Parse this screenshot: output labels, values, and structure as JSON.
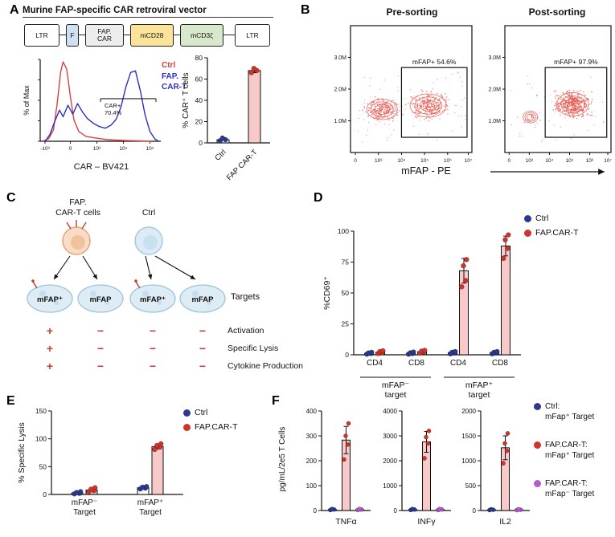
{
  "colors": {
    "ctrl_blue": "#2b3a8f",
    "car_red": "#cf342b",
    "bar_pink": "#f7c9c9",
    "purple_dot": "#b45bc7",
    "flow_red": "#e4544c",
    "symbol_red": "#d03a30",
    "axis": "#111111"
  },
  "series_styles": {
    "ctrl": {
      "dot": "#2b3a8f",
      "fill": "#ffffff"
    },
    "car": {
      "dot": "#cf342b",
      "fill": "#f7c9c9"
    },
    "carNeg": {
      "dot": "#b45bc7",
      "fill": "#ffffff"
    }
  },
  "panels": {
    "A": {
      "label": "A",
      "title": "Murine FAP-specific CAR retroviral vector",
      "vector_boxes": [
        {
          "lines": [
            "LTR"
          ],
          "fill": "#ffffff"
        },
        {
          "lines": [
            "F"
          ],
          "fill": "#cfe0f2"
        },
        {
          "lines": [
            "FAP.",
            "CAR"
          ],
          "fill": "#ededed"
        },
        {
          "lines": [
            "mCD28"
          ],
          "fill": "#fbe39a"
        },
        {
          "lines": [
            "mCD3ζ"
          ],
          "fill": "#d8e8cb"
        },
        {
          "lines": [
            "LTR"
          ],
          "fill": "#ffffff"
        }
      ],
      "hist_legend": [
        {
          "label": "Ctrl",
          "color": "#d9413d"
        },
        {
          "label": "FAP.",
          "color": "#2f2fc1"
        },
        {
          "label": "CAR-T",
          "color": "#2f2fc1"
        }
      ]
    },
    "B": {
      "label": "B",
      "xlabel": "mFAP - PE"
    },
    "C": {
      "label": "C",
      "cart_label_lines": [
        "FAP.",
        "CAR-T cells"
      ],
      "ctrl_label": "Ctrl",
      "targets": [
        "mFAP⁺",
        "mFAP",
        "mFAP⁺",
        "mFAP"
      ],
      "targets_caption": "Targets",
      "rows": [
        {
          "symbols": [
            "+",
            "−",
            "−",
            "−"
          ],
          "label": "Activation"
        },
        {
          "symbols": [
            "+",
            "−",
            "−",
            "−"
          ],
          "label": "Specific Lysis"
        },
        {
          "symbols": [
            "+",
            "−",
            "−",
            "−"
          ],
          "label": "Cytokine Production"
        }
      ]
    },
    "D": {
      "label": "D",
      "legend": [
        {
          "label": "Ctrl",
          "color": "#2b3a8f"
        },
        {
          "label": "FAP.CAR-T",
          "color": "#cf342b"
        }
      ]
    },
    "E": {
      "label": "E",
      "legend": [
        {
          "label": "Ctrl",
          "color": "#2b3a8f"
        },
        {
          "label": "FAP.CAR-T",
          "color": "#cf342b"
        }
      ]
    },
    "F": {
      "label": "F",
      "legend": [
        {
          "lines": [
            "Ctrl:",
            "mFap⁺ Target"
          ],
          "color": "#2b3a8f"
        },
        {
          "lines": [
            "FAP.CAR-T:",
            "mFap⁺ Target"
          ],
          "color": "#cf342b"
        },
        {
          "lines": [
            "FAP.CAR-T:",
            "mFap⁻ Target"
          ],
          "color": "#b45bc7"
        }
      ]
    }
  },
  "chart_data": [
    {
      "id": "car-histogram",
      "type": "line",
      "ylabel": "% of Max",
      "xlabel": "CAR – BV421",
      "xticks": [
        "-10³",
        "0",
        "10³",
        "10⁴",
        "10⁵"
      ],
      "gate": {
        "x1": 50,
        "x2": 96,
        "y": 52
      },
      "gate_label_lines": [
        "CAR+",
        "70.4%"
      ],
      "series": [
        {
          "name": "Ctrl",
          "color": "#d9413d",
          "points": [
            [
              2,
              0
            ],
            [
              7,
              3
            ],
            [
              11,
              14
            ],
            [
              14,
              45
            ],
            [
              17,
              85
            ],
            [
              19,
              97
            ],
            [
              22,
              88
            ],
            [
              25,
              55
            ],
            [
              28,
              26
            ],
            [
              32,
              12
            ],
            [
              38,
              6
            ],
            [
              46,
              4
            ],
            [
              56,
              2
            ],
            [
              70,
              1
            ],
            [
              92,
              0
            ]
          ]
        },
        {
          "name": "FAP.CAR-T",
          "color": "#2f2fc1",
          "points": [
            [
              4,
              0
            ],
            [
              8,
              8
            ],
            [
              12,
              24
            ],
            [
              16,
              38
            ],
            [
              19,
              30
            ],
            [
              23,
              44
            ],
            [
              27,
              33
            ],
            [
              31,
              46
            ],
            [
              35,
              36
            ],
            [
              39,
              28
            ],
            [
              44,
              22
            ],
            [
              49,
              18
            ],
            [
              54,
              16
            ],
            [
              59,
              20
            ],
            [
              63,
              27
            ],
            [
              67,
              42
            ],
            [
              71,
              66
            ],
            [
              75,
              84
            ],
            [
              79,
              86
            ],
            [
              83,
              62
            ],
            [
              87,
              32
            ],
            [
              91,
              12
            ],
            [
              95,
              3
            ],
            [
              98,
              0
            ]
          ]
        }
      ]
    },
    {
      "id": "car-bar",
      "type": "bar",
      "ylabel": "% CAR⁺ T cells",
      "ylim": [
        0,
        80
      ],
      "yticks": [
        0,
        20,
        40,
        60,
        80
      ],
      "groups": [
        {
          "label_lines": [
            "Ctrl"
          ],
          "bars": [
            {
              "series": "ctrl",
              "value": 3,
              "points": [
                2,
                3,
                4.5
              ]
            }
          ]
        },
        {
          "label_lines": [
            "FAP CAR-T"
          ],
          "bars": [
            {
              "series": "car",
              "value": 68,
              "error": 2,
              "points": [
                66,
                68,
                70
              ]
            }
          ]
        }
      ]
    },
    {
      "id": "flow-pre",
      "type": "scatter",
      "title": "Pre-sorting",
      "yticks": [
        "3.0M",
        "2.0M",
        "1.0M"
      ],
      "xticks": [
        "0",
        "10³",
        "10⁴",
        "10⁵",
        "10⁶",
        "10⁷"
      ],
      "gate": {
        "x1": 42,
        "y1": 33,
        "x2": 96,
        "y2": 88
      },
      "gate_label": "mFAP+ 54.6%",
      "clusters": [
        {
          "cx": 26,
          "cy": 66,
          "rx": 11,
          "ry": 7,
          "n": 210
        },
        {
          "cx": 64,
          "cy": 63,
          "rx": 13,
          "ry": 8,
          "n": 250
        }
      ],
      "noise": 80
    },
    {
      "id": "flow-post",
      "type": "scatter",
      "title": "Post-sorting",
      "yticks": [
        "3.0M",
        "2.0M",
        "1.0M"
      ],
      "xticks": [
        "0",
        "10³",
        "10⁴",
        "10⁵",
        "10⁶",
        "10⁷"
      ],
      "gate": {
        "x1": 38,
        "y1": 33,
        "x2": 96,
        "y2": 88
      },
      "gate_label": "mFAP+ 97.9%",
      "clusters": [
        {
          "cx": 64,
          "cy": 62,
          "rx": 13,
          "ry": 8,
          "n": 420
        },
        {
          "cx": 24,
          "cy": 72,
          "rx": 6,
          "ry": 4,
          "n": 15
        }
      ],
      "noise": 45
    },
    {
      "id": "cd69",
      "type": "bar",
      "ylabel": "%CD69⁺",
      "ylim": [
        0,
        100
      ],
      "yticks": [
        0,
        25,
        50,
        75,
        100
      ],
      "groups": [
        {
          "label_lines": [
            "CD4"
          ],
          "bars": [
            {
              "series": "ctrl",
              "value": 1,
              "points": [
                0.5,
                1,
                1.5,
                2
              ]
            },
            {
              "series": "car",
              "value": 2,
              "points": [
                1,
                1.8,
                2.6,
                3.2
              ]
            }
          ]
        },
        {
          "label_lines": [
            "CD8"
          ],
          "bars": [
            {
              "series": "ctrl",
              "value": 1,
              "points": [
                0.5,
                1,
                1.6,
                2.2
              ]
            },
            {
              "series": "car",
              "value": 2.5,
              "points": [
                1.4,
                2.2,
                3,
                3.6
              ]
            }
          ]
        },
        {
          "label_lines": [
            "CD4"
          ],
          "bars": [
            {
              "series": "ctrl",
              "value": 1.5,
              "points": [
                0.8,
                1.4,
                2,
                2.6
              ]
            },
            {
              "series": "car",
              "value": 68,
              "error": 10,
              "points": [
                55,
                60,
                72,
                77
              ]
            }
          ]
        },
        {
          "label_lines": [
            "CD8"
          ],
          "bars": [
            {
              "series": "ctrl",
              "value": 1.5,
              "points": [
                0.8,
                1.4,
                2,
                2.6
              ]
            },
            {
              "series": "car",
              "value": 88,
              "error": 8,
              "points": [
                78,
                86,
                93,
                97
              ]
            }
          ]
        }
      ],
      "axis_groups": [
        {
          "label_lines": [
            "mFAP⁻",
            "target"
          ],
          "from": 0,
          "to": 1
        },
        {
          "label_lines": [
            "mFAP⁺",
            "target"
          ],
          "from": 2,
          "to": 3
        }
      ]
    },
    {
      "id": "lysis",
      "type": "bar",
      "ylabel": "% Specific Lysis",
      "ylim": [
        0,
        150
      ],
      "yticks": [
        0,
        50,
        100,
        150
      ],
      "groups": [
        {
          "label_lines": [
            "mFAP⁻",
            "Target"
          ],
          "bars": [
            {
              "series": "ctrl",
              "value": 2.5,
              "points": [
                1,
                2,
                3.5,
                5
              ]
            },
            {
              "series": "car",
              "value": 8,
              "points": [
                5,
                7,
                9.5,
                12
              ]
            }
          ]
        },
        {
          "label_lines": [
            "mFAP⁺",
            "Target"
          ],
          "bars": [
            {
              "series": "ctrl",
              "value": 12,
              "points": [
                10,
                11.5,
                13,
                14
              ]
            },
            {
              "series": "car",
              "value": 86,
              "error": 4,
              "points": [
                81,
                85,
                88,
                91
              ]
            }
          ]
        }
      ]
    },
    {
      "id": "tnfa",
      "type": "bar",
      "xlabel": "TNFα",
      "ylabel": "pg/mL/2e5 T Cells",
      "ylim": [
        0,
        400
      ],
      "yticks": [
        0,
        100,
        200,
        300,
        400
      ],
      "groups": [
        {
          "label_lines": [],
          "bars": [
            {
              "series": "ctrl",
              "value": 4,
              "points": [
                2,
                4,
                6
              ]
            },
            {
              "series": "car",
              "value": 283,
              "error": 55,
              "points": [
                205,
                265,
                300,
                350
              ]
            },
            {
              "series": "carNeg",
              "value": 4,
              "points": [
                2,
                4,
                6
              ]
            }
          ]
        }
      ]
    },
    {
      "id": "infg",
      "type": "bar",
      "xlabel": "INFγ",
      "ylim": [
        0,
        4000
      ],
      "yticks": [
        0,
        1000,
        2000,
        3000,
        4000
      ],
      "groups": [
        {
          "label_lines": [],
          "bars": [
            {
              "series": "ctrl",
              "value": 40,
              "points": [
                20,
                40,
                60
              ]
            },
            {
              "series": "car",
              "value": 2760,
              "error": 420,
              "points": [
                2100,
                2700,
                2950,
                3200
              ]
            },
            {
              "series": "carNeg",
              "value": 40,
              "points": [
                20,
                40,
                60
              ]
            }
          ]
        }
      ]
    },
    {
      "id": "il2",
      "type": "bar",
      "xlabel": "IL2",
      "ylim": [
        0,
        2000
      ],
      "yticks": [
        0,
        500,
        1000,
        1500,
        2000
      ],
      "groups": [
        {
          "label_lines": [],
          "bars": [
            {
              "series": "ctrl",
              "value": 15,
              "points": [
                8,
                15,
                25
              ]
            },
            {
              "series": "car",
              "value": 1260,
              "error": 240,
              "points": [
                950,
                1200,
                1350,
                1550
              ]
            },
            {
              "series": "carNeg",
              "value": 15,
              "points": [
                8,
                15,
                25
              ]
            }
          ]
        }
      ]
    }
  ]
}
